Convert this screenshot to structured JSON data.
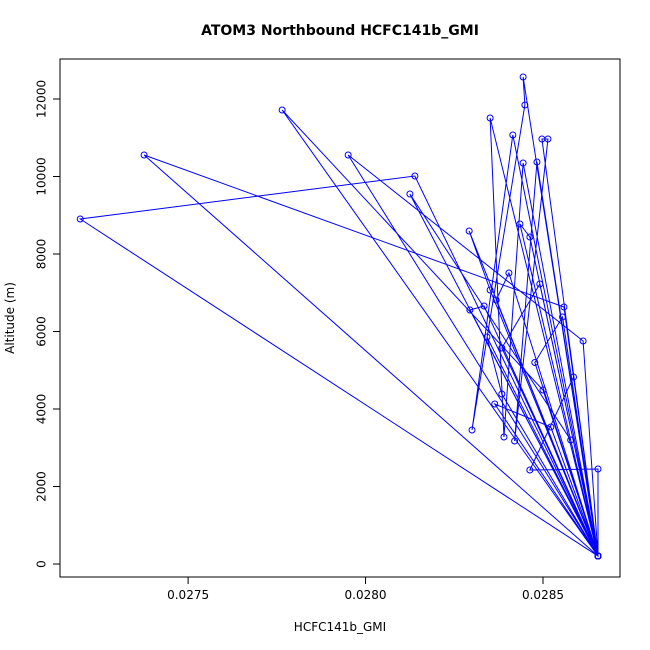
{
  "chart_data": {
    "type": "line",
    "title": "ATOM3 Northbound HCFC141b_GMI",
    "x_label": "HCFC141b_GMI",
    "y_label": "Altitude (m)",
    "series": [
      {
        "color": "#0000ff",
        "x": [
          0.028655,
          0.027196,
          0.028139,
          0.028655,
          0.027376,
          0.028559,
          0.028655,
          0.027765,
          0.0285,
          0.028655,
          0.027951,
          0.028613,
          0.028655,
          0.028125,
          0.028578,
          0.028655,
          0.028292,
          0.028351,
          0.028655,
          0.028444,
          0.028449,
          0.0283,
          0.028415,
          0.028655,
          0.028351,
          0.02839,
          0.028444,
          0.028655,
          0.028497,
          0.028514,
          0.02842,
          0.028483,
          0.028655,
          0.028435,
          0.028463,
          0.028655,
          0.028404,
          0.028368,
          0.028655,
          0.028294,
          0.028334,
          0.028655,
          0.028491,
          0.028384,
          0.028655,
          0.028342,
          0.028384,
          0.028655,
          0.028586,
          0.028463,
          0.028655,
          0.028655,
          0.028364,
          0.028522,
          0.028655,
          0.028477,
          0.028555,
          0.028655
        ],
        "values": [
          206,
          8903,
          10013,
          206,
          10555,
          6632,
          206,
          11716,
          4490,
          206,
          10555,
          5755,
          206,
          9548,
          3200,
          206,
          8594,
          7071,
          206,
          12568,
          11845,
          3458,
          11071,
          206,
          11510,
          3277,
          10348,
          206,
          10968,
          10968,
          3174,
          10374,
          206,
          8774,
          8439,
          206,
          7510,
          6813,
          206,
          6555,
          6658,
          206,
          7226,
          5574,
          206,
          5858,
          4387,
          206,
          4826,
          2426,
          2452,
          206,
          4129,
          3535,
          206,
          5200,
          6374,
          206
        ]
      }
    ],
    "xlim": [
      0.027139,
      0.028717
    ],
    "ylim": [
      -335,
      13032
    ],
    "xticks": [
      0.0275,
      {
        "value": 0.028,
        "label": "0.0280"
      },
      0.0285
    ],
    "yticks": [
      0,
      2000,
      4000,
      6000,
      8000,
      10000,
      12000
    ]
  }
}
